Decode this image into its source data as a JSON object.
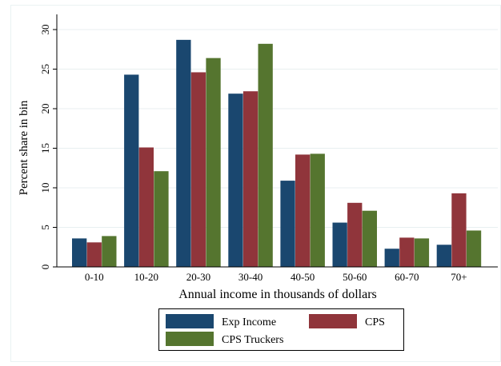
{
  "chart_data": {
    "type": "bar",
    "title": "",
    "xlabel": "Annual income in thousands of dollars",
    "ylabel": "Percent share in bin",
    "categories": [
      "0-10",
      "10-20",
      "20-30",
      "30-40",
      "40-50",
      "50-60",
      "60-70",
      "70+"
    ],
    "ylim": [
      0,
      30
    ],
    "yticks": [
      0,
      5,
      10,
      15,
      20,
      25,
      30
    ],
    "grid": true,
    "legend_position": "bottom",
    "series": [
      {
        "name": "Exp Income",
        "color": "#1a476f",
        "values": [
          3.6,
          24.3,
          28.7,
          21.9,
          10.9,
          5.6,
          2.3,
          2.8
        ]
      },
      {
        "name": "CPS",
        "color": "#90353b",
        "values": [
          3.1,
          15.1,
          24.6,
          22.2,
          14.2,
          8.1,
          3.7,
          9.3
        ]
      },
      {
        "name": "CPS Truckers",
        "color": "#55752f",
        "values": [
          3.9,
          12.1,
          26.4,
          28.2,
          14.3,
          7.1,
          3.6,
          4.6
        ]
      }
    ]
  }
}
